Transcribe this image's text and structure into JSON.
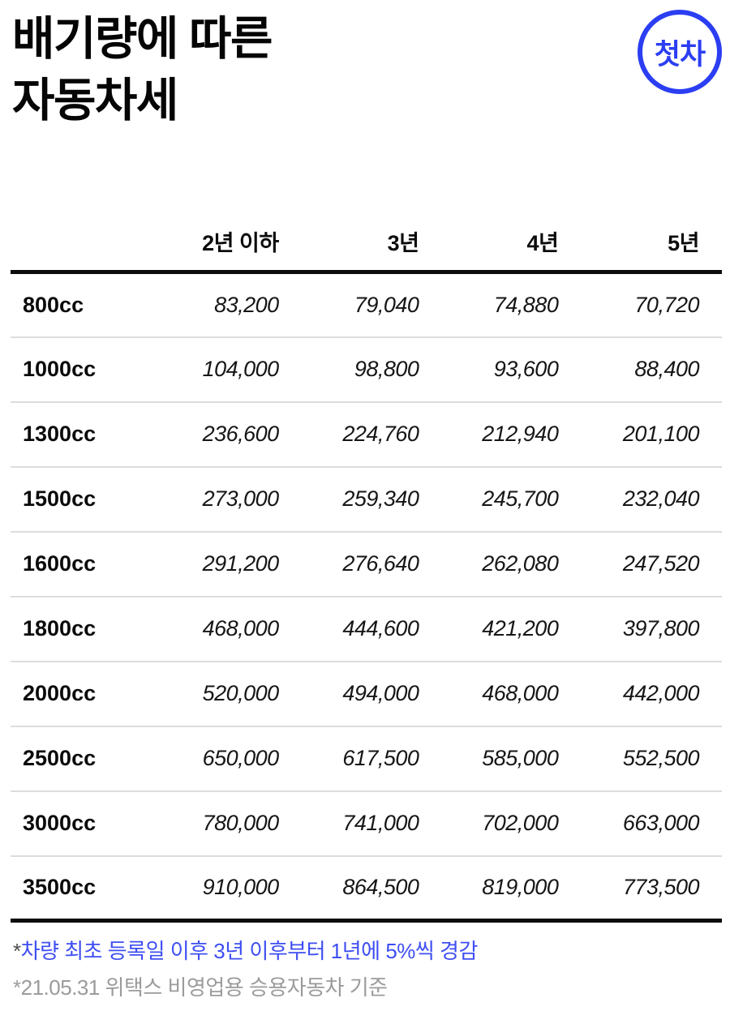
{
  "header": {
    "title_lines": [
      "배기량에 따른",
      "자동차세"
    ],
    "badge_label": "첫차"
  },
  "chart_data": {
    "type": "table",
    "title": "배기량에 따른 자동차세",
    "columns": [
      "",
      "2년 이하",
      "3년",
      "4년",
      "5년"
    ],
    "rows": [
      {
        "label": "800cc",
        "values": [
          "83,200",
          "79,040",
          "74,880",
          "70,720"
        ]
      },
      {
        "label": "1000cc",
        "values": [
          "104,000",
          "98,800",
          "93,600",
          "88,400"
        ]
      },
      {
        "label": "1300cc",
        "values": [
          "236,600",
          "224,760",
          "212,940",
          "201,100"
        ]
      },
      {
        "label": "1500cc",
        "values": [
          "273,000",
          "259,340",
          "245,700",
          "232,040"
        ]
      },
      {
        "label": "1600cc",
        "values": [
          "291,200",
          "276,640",
          "262,080",
          "247,520"
        ]
      },
      {
        "label": "1800cc",
        "values": [
          "468,000",
          "444,600",
          "421,200",
          "397,800"
        ]
      },
      {
        "label": "2000cc",
        "values": [
          "520,000",
          "494,000",
          "468,000",
          "442,000"
        ]
      },
      {
        "label": "2500cc",
        "values": [
          "650,000",
          "617,500",
          "585,000",
          "552,500"
        ]
      },
      {
        "label": "3000cc",
        "values": [
          "780,000",
          "741,000",
          "702,000",
          "663,000"
        ]
      },
      {
        "label": "3500cc",
        "values": [
          "910,000",
          "864,500",
          "819,000",
          "773,500"
        ]
      }
    ]
  },
  "footnotes": [
    {
      "marker": "*",
      "text": "차량 최초 등록일 이후 3년 이후부터 1년에 5%씩 경감"
    },
    {
      "marker": "*",
      "text": "21.05.31 위택스 비영업용 승용자동차 기준"
    }
  ],
  "colors": {
    "badge_blue": "#2b3ef2",
    "footnote_blue": "#3e4ef2",
    "footnote_gray": "#9b9b9b",
    "table_rule_black": "#0c0c0c",
    "row_separator_gray": "#dcdcdc"
  }
}
